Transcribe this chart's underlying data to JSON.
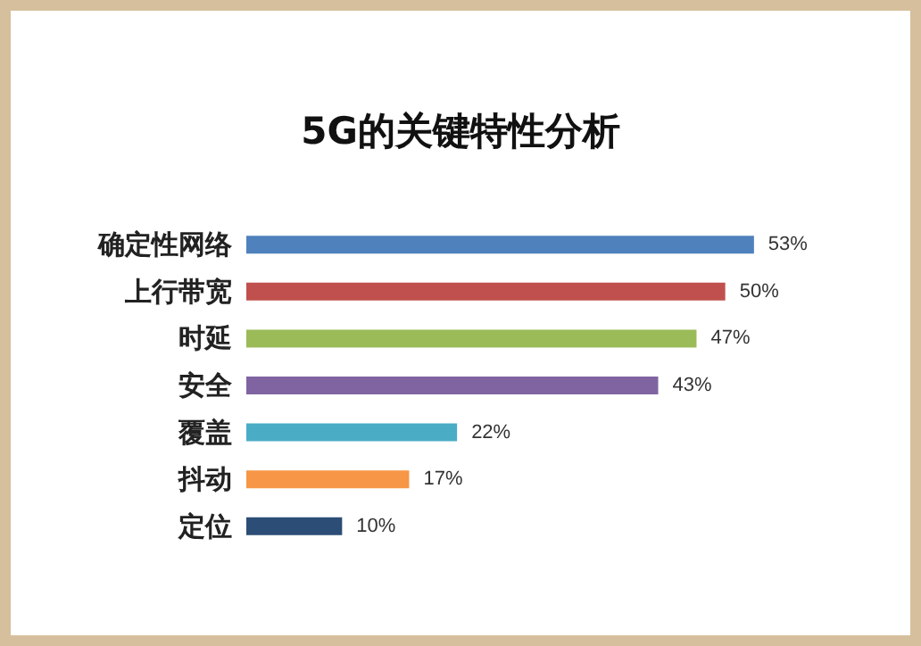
{
  "chart_data": {
    "type": "bar",
    "orientation": "horizontal",
    "title": "5G的关键特性分析",
    "categories": [
      "确定性网络",
      "上行带宽",
      "时延",
      "安全",
      "覆盖",
      "抖动",
      "定位"
    ],
    "values": [
      53,
      50,
      47,
      43,
      22,
      17,
      10
    ],
    "colors": [
      "#4f81bd",
      "#c0504d",
      "#9bbb59",
      "#8064a2",
      "#4bacc6",
      "#f79646",
      "#2c4d75"
    ],
    "value_labels": [
      "53%",
      "50%",
      "47%",
      "43%",
      "22%",
      "17%",
      "10%"
    ]
  }
}
